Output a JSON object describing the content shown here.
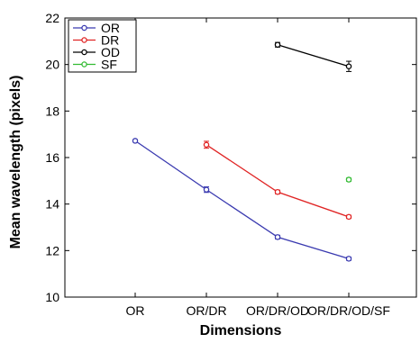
{
  "chart_data": {
    "type": "line",
    "title": "",
    "xlabel": "Dimensions",
    "ylabel": "Mean wavelength (pixels)",
    "categories": [
      "OR",
      "OR/DR",
      "OR/DR/OD",
      "OR/DR/OD/SF"
    ],
    "ylim": [
      10,
      22
    ],
    "yticks": [
      10,
      12,
      14,
      16,
      18,
      20,
      22
    ],
    "grid": false,
    "legend_position": "top-left",
    "series": [
      {
        "name": "OR",
        "color": "#3a3ab0",
        "values": [
          16.72,
          14.62,
          12.58,
          11.65
        ],
        "errors": [
          0.05,
          0.12,
          0.08,
          0.07
        ]
      },
      {
        "name": "DR",
        "color": "#e02424",
        "values": [
          null,
          16.55,
          14.52,
          13.45
        ],
        "errors": [
          null,
          0.15,
          0.08,
          0.07
        ]
      },
      {
        "name": "OD",
        "color": "#000000",
        "values": [
          null,
          null,
          20.85,
          19.92
        ],
        "errors": [
          null,
          null,
          0.1,
          0.22
        ]
      },
      {
        "name": "SF",
        "color": "#33bb33",
        "values": [
          null,
          null,
          null,
          15.05
        ],
        "errors": [
          null,
          null,
          null,
          0.07
        ]
      }
    ]
  }
}
